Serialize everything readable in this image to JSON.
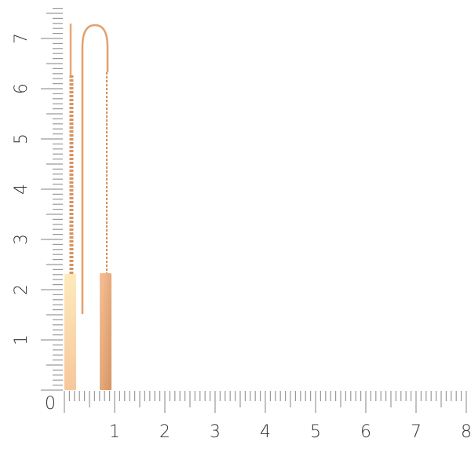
{
  "ruler": {
    "vertical_labels": [
      "1",
      "2",
      "3",
      "4",
      "5",
      "6",
      "7"
    ],
    "horizontal_labels": [
      "1",
      "2",
      "3",
      "4",
      "5",
      "6",
      "7",
      "8"
    ],
    "origin_label": "0",
    "tick_color": "#9a9a9a"
  },
  "product": {
    "metal_light": "#fde4b0",
    "metal_mid": "#f4b98a",
    "metal_dark": "#d9986a"
  }
}
